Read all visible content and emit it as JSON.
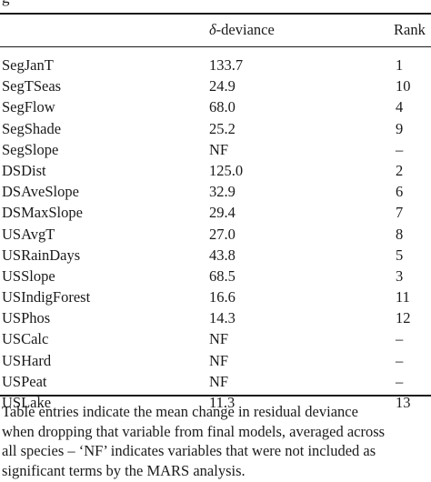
{
  "caption_fragment": "g",
  "header": {
    "col_variable": "",
    "col_deviance_symbol": "δ",
    "col_deviance_label": "-deviance",
    "col_rank": "Rank"
  },
  "rows": [
    {
      "variable": "SegJanT",
      "deviance": "133.7",
      "rank": "1"
    },
    {
      "variable": "SegTSeas",
      "deviance": "24.9",
      "rank": "10"
    },
    {
      "variable": "SegFlow",
      "deviance": "68.0",
      "rank": "4"
    },
    {
      "variable": "SegShade",
      "deviance": "25.2",
      "rank": "9"
    },
    {
      "variable": "SegSlope",
      "deviance": "NF",
      "rank": "–"
    },
    {
      "variable": "DSDist",
      "deviance": "125.0",
      "rank": "2"
    },
    {
      "variable": "DSAveSlope",
      "deviance": "32.9",
      "rank": "6"
    },
    {
      "variable": "DSMaxSlope",
      "deviance": "29.4",
      "rank": "7"
    },
    {
      "variable": "USAvgT",
      "deviance": "27.0",
      "rank": "8"
    },
    {
      "variable": "USRainDays",
      "deviance": "43.8",
      "rank": "5"
    },
    {
      "variable": "USSlope",
      "deviance": "68.5",
      "rank": "3"
    },
    {
      "variable": "USIndigForest",
      "deviance": "16.6",
      "rank": "11"
    },
    {
      "variable": "USPhos",
      "deviance": "14.3",
      "rank": "12"
    },
    {
      "variable": "USCalc",
      "deviance": "NF",
      "rank": "–"
    },
    {
      "variable": "USHard",
      "deviance": "NF",
      "rank": "–"
    },
    {
      "variable": "USPeat",
      "deviance": "NF",
      "rank": "–"
    },
    {
      "variable": "USLake",
      "deviance": "11.3",
      "rank": "13"
    }
  ],
  "footnote": [
    "Table entries indicate the mean change in residual deviance",
    "when dropping that variable from final models, averaged across",
    "all species – ‘NF’ indicates variables that were not included as",
    "significant terms by the MARS analysis."
  ]
}
